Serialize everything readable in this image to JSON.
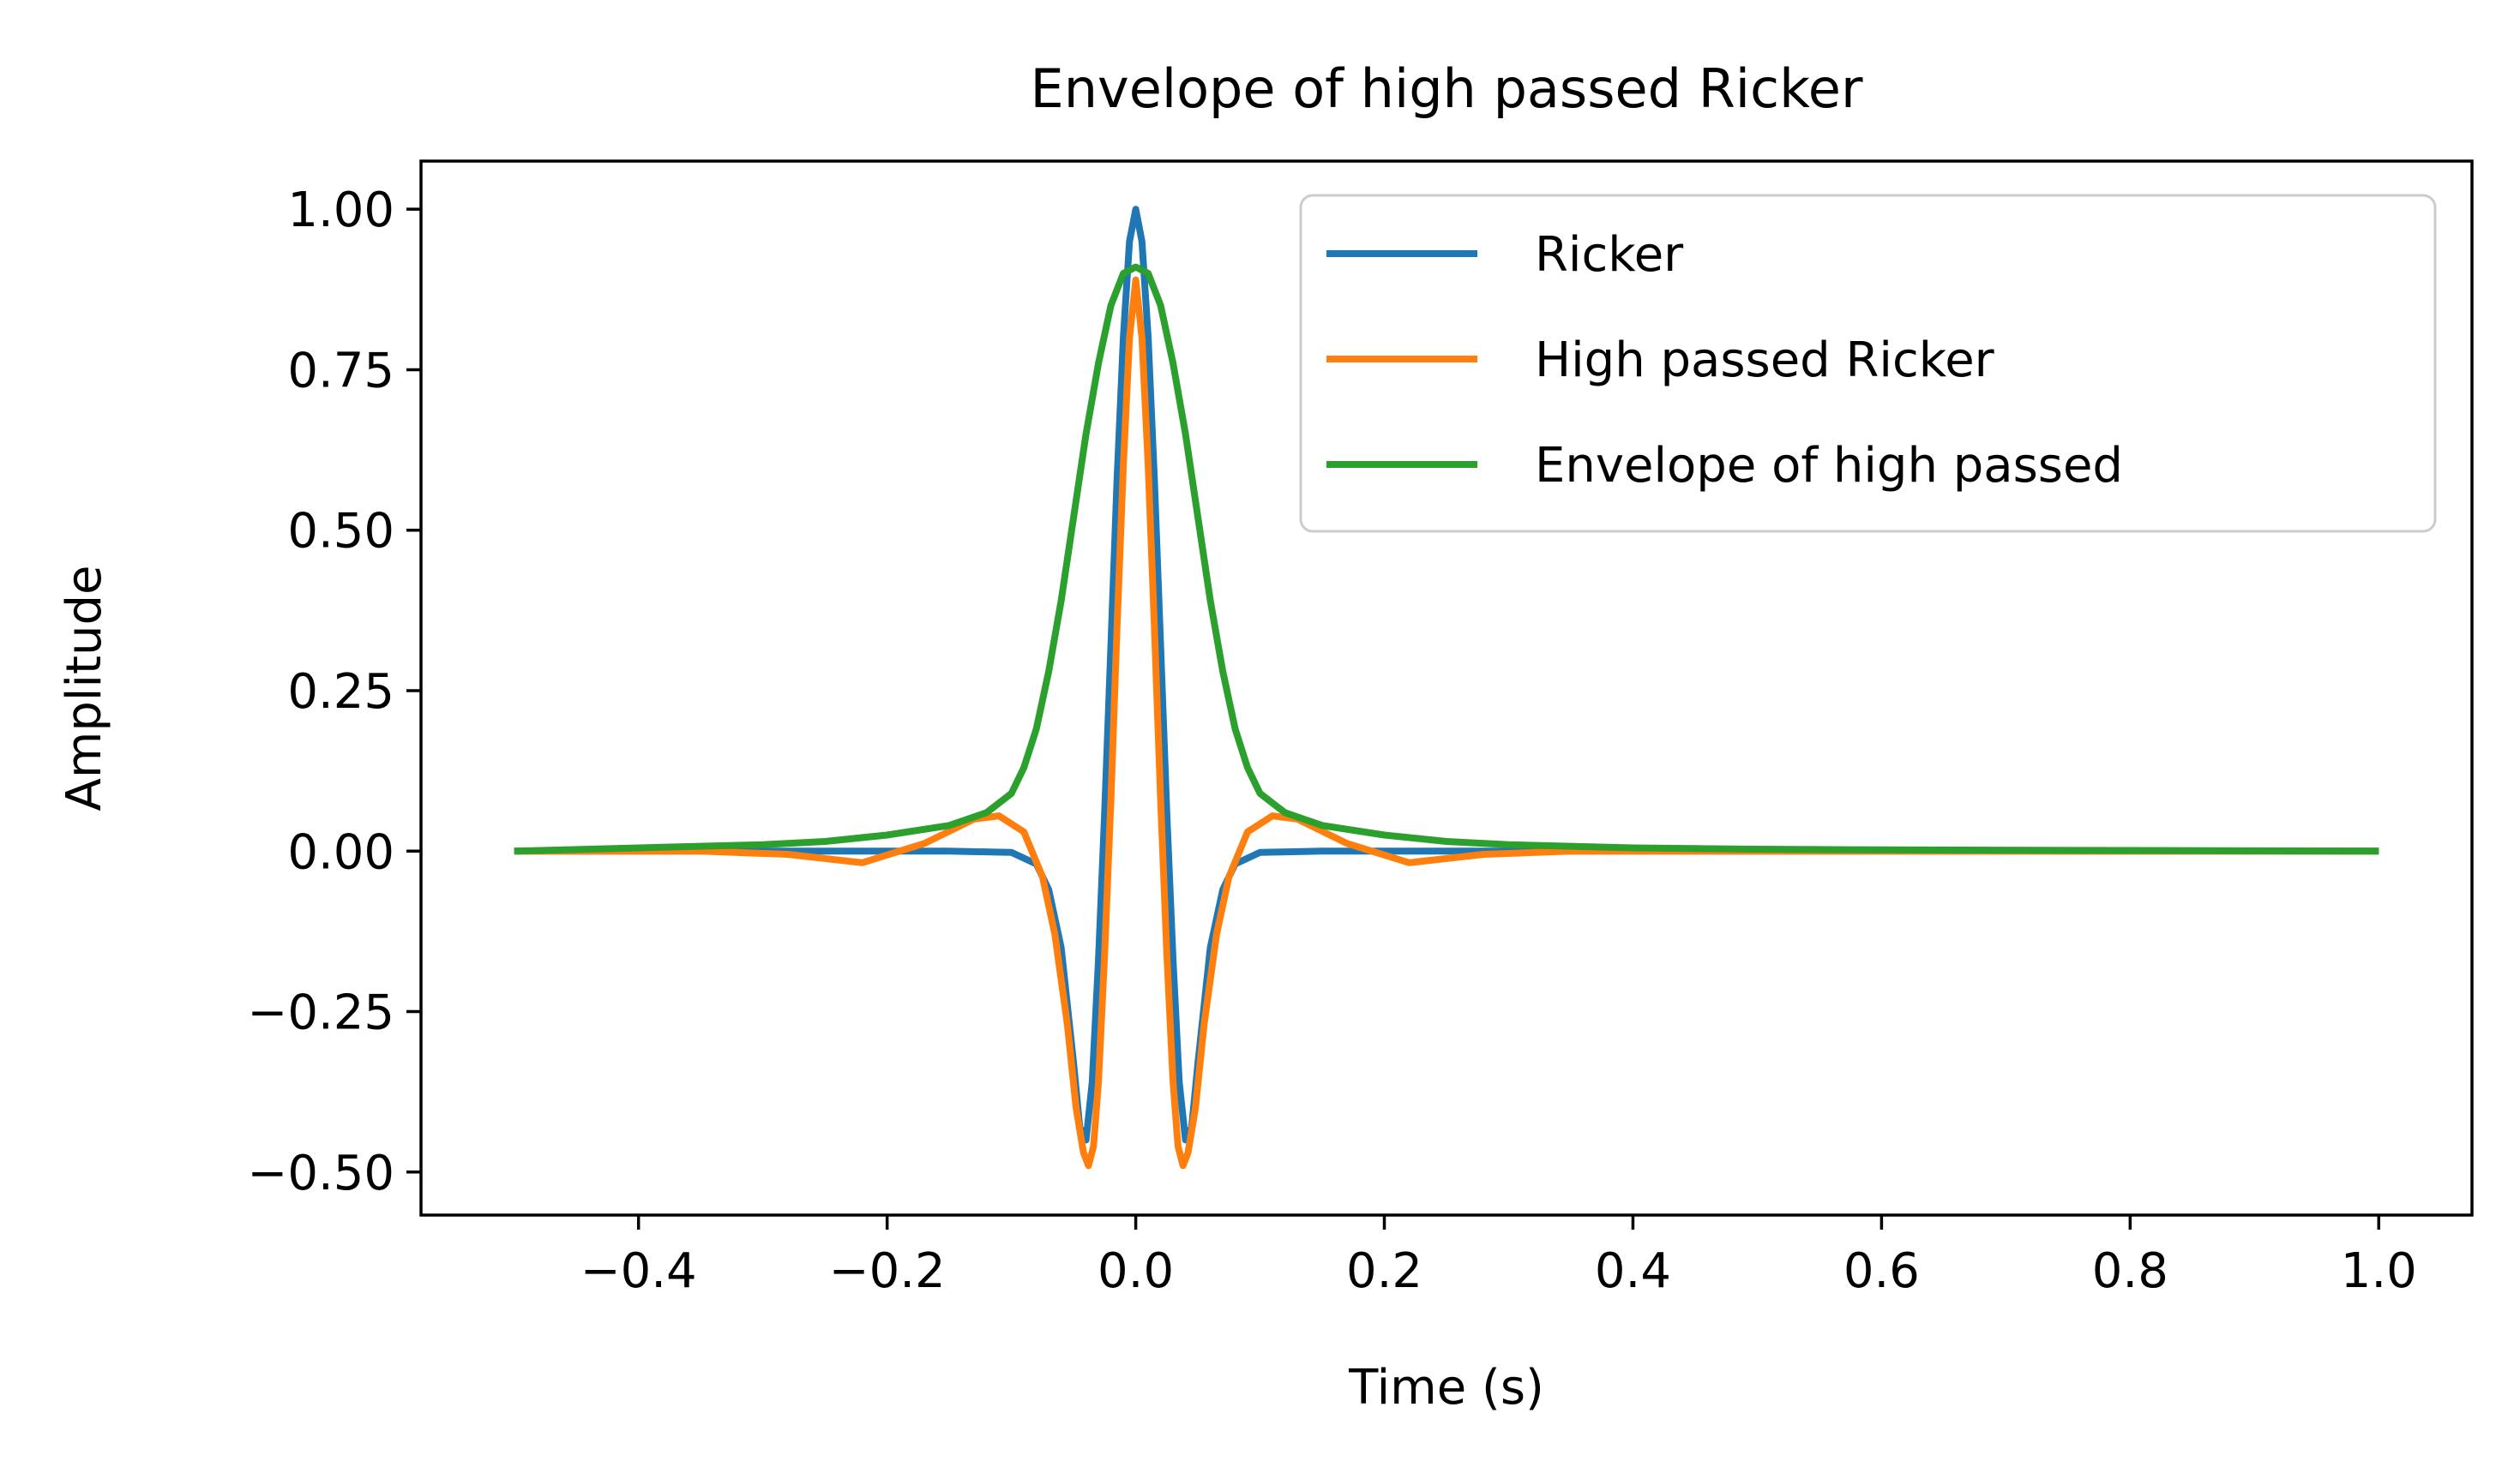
{
  "chart_data": {
    "type": "line",
    "title": "Envelope of high passed Ricker",
    "xlabel": "Time (s)",
    "ylabel": "Amplitude",
    "xlim": [
      -0.575,
      1.075
    ],
    "ylim": [
      -0.567,
      1.075
    ],
    "xticks": [
      -0.4,
      -0.2,
      0.0,
      0.2,
      0.4,
      0.6,
      0.8,
      1.0
    ],
    "xtick_labels": [
      "−0.4",
      "−0.2",
      "0.0",
      "0.2",
      "0.4",
      "0.6",
      "0.8",
      "1.0"
    ],
    "yticks": [
      1.0,
      0.75,
      0.5,
      0.25,
      0.0,
      -0.25,
      -0.5
    ],
    "ytick_labels": [
      "1.00",
      "0.75",
      "0.50",
      "0.25",
      "0.00",
      "−0.25",
      "−0.50"
    ],
    "grid": false,
    "legend_position": "top-right",
    "series": [
      {
        "name": "Ricker",
        "color": "#1f77b4",
        "x": [
          -0.5,
          -0.3,
          -0.15,
          -0.1,
          -0.08,
          -0.07,
          -0.06,
          -0.05,
          -0.045,
          -0.04,
          -0.035,
          -0.03,
          -0.025,
          -0.02,
          -0.015,
          -0.01,
          -0.005,
          0.0,
          0.005,
          0.01,
          0.015,
          0.02,
          0.025,
          0.03,
          0.035,
          0.04,
          0.045,
          0.05,
          0.06,
          0.07,
          0.08,
          0.1,
          0.15,
          0.3,
          0.5,
          0.7,
          1.0
        ],
        "y": [
          0.0,
          0.0,
          0.0,
          -0.002,
          -0.02,
          -0.06,
          -0.15,
          -0.33,
          -0.43,
          -0.45,
          -0.36,
          -0.17,
          0.06,
          0.32,
          0.58,
          0.8,
          0.95,
          1.0,
          0.95,
          0.8,
          0.58,
          0.32,
          0.06,
          -0.17,
          -0.36,
          -0.45,
          -0.43,
          -0.33,
          -0.15,
          -0.06,
          -0.02,
          -0.002,
          0.0,
          0.0,
          0.0,
          0.0,
          0.0
        ]
      },
      {
        "name": "High passed Ricker",
        "color": "#ff7f0e",
        "x": [
          -0.5,
          -0.35,
          -0.28,
          -0.22,
          -0.17,
          -0.13,
          -0.11,
          -0.09,
          -0.075,
          -0.065,
          -0.055,
          -0.048,
          -0.042,
          -0.038,
          -0.034,
          -0.03,
          -0.025,
          -0.02,
          -0.015,
          -0.01,
          -0.005,
          0.0,
          0.005,
          0.01,
          0.015,
          0.02,
          0.025,
          0.03,
          0.034,
          0.038,
          0.042,
          0.048,
          0.055,
          0.065,
          0.075,
          0.09,
          0.11,
          0.13,
          0.17,
          0.22,
          0.28,
          0.35,
          0.5,
          0.7,
          1.0
        ],
        "y": [
          0.0,
          0.0,
          -0.005,
          -0.018,
          0.012,
          0.05,
          0.055,
          0.03,
          -0.04,
          -0.13,
          -0.27,
          -0.4,
          -0.47,
          -0.49,
          -0.46,
          -0.36,
          -0.16,
          0.08,
          0.35,
          0.6,
          0.8,
          0.89,
          0.8,
          0.6,
          0.35,
          0.08,
          -0.16,
          -0.36,
          -0.46,
          -0.49,
          -0.47,
          -0.4,
          -0.27,
          -0.13,
          -0.04,
          0.03,
          0.055,
          0.05,
          0.012,
          -0.018,
          -0.005,
          0.0,
          0.0,
          0.0,
          0.0
        ]
      },
      {
        "name": "Envelope of high passed",
        "color": "#2ca02c",
        "x": [
          -0.5,
          -0.4,
          -0.3,
          -0.25,
          -0.2,
          -0.15,
          -0.12,
          -0.1,
          -0.09,
          -0.08,
          -0.07,
          -0.06,
          -0.05,
          -0.04,
          -0.03,
          -0.02,
          -0.01,
          0.0,
          0.01,
          0.02,
          0.03,
          0.04,
          0.05,
          0.06,
          0.07,
          0.08,
          0.09,
          0.1,
          0.12,
          0.15,
          0.2,
          0.25,
          0.3,
          0.4,
          0.5,
          0.6,
          0.8,
          1.0
        ],
        "y": [
          0.0,
          0.005,
          0.01,
          0.015,
          0.025,
          0.04,
          0.06,
          0.09,
          0.13,
          0.19,
          0.28,
          0.39,
          0.52,
          0.65,
          0.76,
          0.85,
          0.9,
          0.91,
          0.9,
          0.85,
          0.76,
          0.65,
          0.52,
          0.39,
          0.28,
          0.19,
          0.13,
          0.09,
          0.06,
          0.04,
          0.025,
          0.015,
          0.01,
          0.005,
          0.003,
          0.002,
          0.001,
          0.0
        ]
      }
    ]
  }
}
